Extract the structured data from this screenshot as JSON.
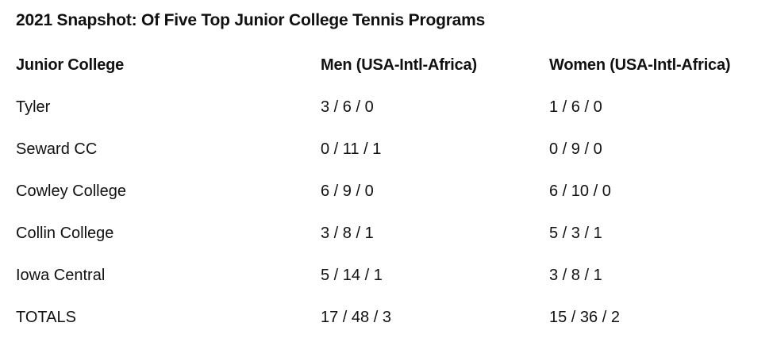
{
  "title": "2021 Snapshot: Of Five Top Junior College Tennis Programs",
  "table": {
    "headers": [
      "Junior College",
      "Men (USA-Intl-Africa)",
      "Women (USA-Intl-Africa)"
    ],
    "rows": [
      [
        "Tyler",
        "3 / 6 / 0",
        "1 / 6 / 0"
      ],
      [
        "Seward CC",
        "0 / 11 / 1",
        "0 / 9 / 0"
      ],
      [
        "Cowley College",
        "6 / 9 / 0",
        "6 / 10 / 0"
      ],
      [
        "Collin College",
        "3 / 8 / 1",
        "5 / 3 / 1"
      ],
      [
        "Iowa Central",
        "5 / 14 / 1",
        "3 / 8 / 1"
      ],
      [
        "TOTALS",
        "17 / 48 / 3",
        "15 / 36 / 2"
      ]
    ]
  }
}
